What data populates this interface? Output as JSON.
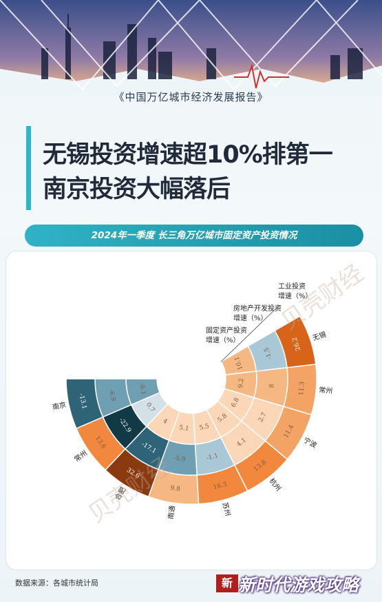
{
  "report_title": "《中国万亿城市经济发展报告》",
  "headline_line1": "无锡投资增速超10%排第一",
  "headline_line2": "南京投资大幅落后",
  "subtitle": "2024年一季度 长三角万亿城市固定资产投资情况",
  "source": "数据来源：各城市统计局",
  "logo_text": "新",
  "site_watermark": "新时代游戏攻略",
  "chart_data": {
    "type": "radial-heatmap",
    "title": "2024年一季度 长三角万亿城市固定资产投资情况",
    "unit": "%",
    "rings": [
      "固定资产投资增速（%）",
      "房地产开发投资增速（%）",
      "工业投资增速（%）"
    ],
    "cities": [
      "无锡",
      "常州",
      "宁波",
      "杭州",
      "苏州",
      "南通",
      "合肥",
      "常州",
      "南京"
    ],
    "values": [
      [
        10.1,
        -1.5,
        26.2
      ],
      [
        9.2,
        8,
        11.3
      ],
      [
        6.8,
        2.7,
        11.4
      ],
      [
        5.8,
        4.1,
        13.8
      ],
      [
        5.5,
        -1.1,
        16.3
      ],
      [
        5.1,
        -5.9,
        9.8
      ],
      [
        4,
        -17.1,
        32.6
      ],
      [
        0.7,
        -22.9,
        13.6
      ],
      [
        -8.1,
        -6.9,
        -13.1
      ]
    ],
    "colors": {
      "darkest_negative": "#123a46",
      "dark_negative": "#2f6478",
      "mid_negative": "#6e9fb2",
      "light_negative": "#a8c8d7",
      "lightest_negative": "#d3e1e6",
      "lightest_positive": "#fbd7b7",
      "light_positive": "#f6b882",
      "mid_positive": "#f3a364",
      "strong_positive": "#f2883e",
      "dark_positive": "#d8641a",
      "darkest_positive": "#8b3a10"
    },
    "watermark": "贝壳财经"
  }
}
